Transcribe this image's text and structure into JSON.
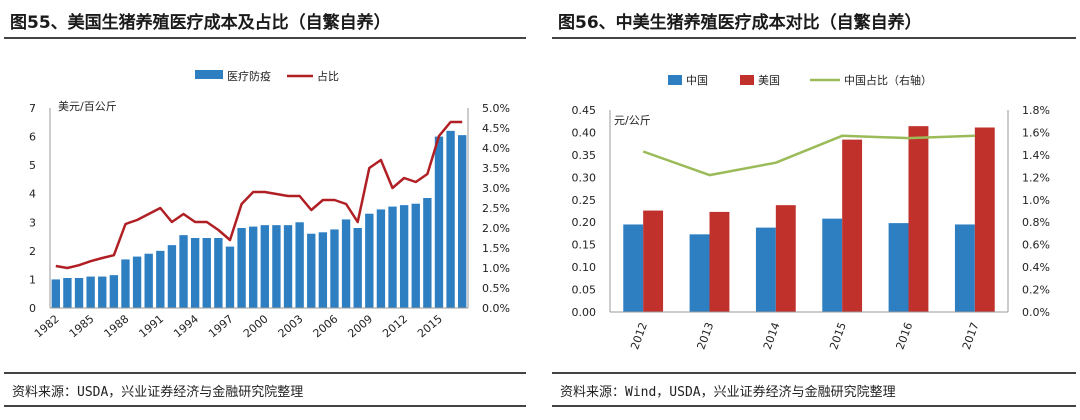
{
  "charts": [
    {
      "title": "图55、美国生猪养殖医疗成本及占比（自繁自养）",
      "source": "资料来源：USDA，兴业证券经济与金融研究院整理"
    },
    {
      "title": "图56、中美生猪养殖医疗成本对比（自繁自养）",
      "source": "资料来源：Wind，USDA，兴业证券经济与金融研究院整理"
    }
  ],
  "colors": {
    "blue": "#2e7fc1",
    "red": "#c0312c",
    "dark_red": "#b01f24",
    "green": "#9bbb59",
    "axis": "#999999",
    "grid": "#e3e3e3"
  },
  "chart_data": [
    {
      "type": "bar",
      "ylabel": "美元/百公斤",
      "x": [
        1982,
        1983,
        1984,
        1985,
        1986,
        1987,
        1988,
        1989,
        1990,
        1991,
        1992,
        1993,
        1994,
        1995,
        1996,
        1997,
        1998,
        1999,
        2000,
        2001,
        2002,
        2003,
        2004,
        2005,
        2006,
        2007,
        2008,
        2009,
        2010,
        2011,
        2012,
        2013,
        2014,
        2015,
        2016,
        2017
      ],
      "x_tick_labels": [
        "1982",
        "1985",
        "1988",
        "1991",
        "1994",
        "1997",
        "2000",
        "2003",
        "2006",
        "2009",
        "2012",
        "2015"
      ],
      "ylim": [
        0,
        7
      ],
      "y_ticks": [
        "0",
        "1",
        "2",
        "3",
        "4",
        "5",
        "6",
        "7"
      ],
      "y2lim": [
        0,
        5
      ],
      "y2_ticks": [
        "0.0%",
        "0.5%",
        "1.0%",
        "1.5%",
        "2.0%",
        "2.5%",
        "3.0%",
        "3.5%",
        "4.0%",
        "4.5%",
        "5.0%"
      ],
      "legend": [
        "医疗防疫",
        "占比"
      ],
      "legend_position": "top-center",
      "series": [
        {
          "name": "医疗防疫",
          "type": "bar",
          "axis": "left",
          "values": [
            1.0,
            1.05,
            1.05,
            1.1,
            1.1,
            1.15,
            1.7,
            1.8,
            1.9,
            2.0,
            2.2,
            2.55,
            2.45,
            2.45,
            2.45,
            2.15,
            2.8,
            2.85,
            2.9,
            2.9,
            2.9,
            3.0,
            2.6,
            2.65,
            2.75,
            3.1,
            2.8,
            3.3,
            3.45,
            3.55,
            3.6,
            3.65,
            3.85,
            6.0,
            6.2,
            6.05
          ]
        },
        {
          "name": "占比",
          "type": "line",
          "axis": "right",
          "values": [
            1.05,
            1.0,
            1.07,
            1.17,
            1.25,
            1.32,
            2.1,
            2.2,
            2.35,
            2.5,
            2.15,
            2.35,
            2.15,
            2.15,
            1.95,
            1.7,
            2.6,
            2.9,
            2.9,
            2.85,
            2.8,
            2.8,
            2.45,
            2.7,
            2.7,
            2.6,
            2.15,
            3.5,
            3.7,
            3.0,
            3.25,
            3.15,
            3.35,
            4.3,
            4.65,
            4.65
          ]
        }
      ]
    },
    {
      "type": "bar",
      "ylabel": "元/公斤",
      "categories": [
        "2012",
        "2013",
        "2014",
        "2015",
        "2016",
        "2017"
      ],
      "ylim": [
        0,
        0.45
      ],
      "y_ticks": [
        "0.00",
        "0.05",
        "0.10",
        "0.15",
        "0.20",
        "0.25",
        "0.30",
        "0.35",
        "0.40",
        "0.45"
      ],
      "y2lim": [
        0,
        1.8
      ],
      "y2_ticks": [
        "0.0%",
        "0.2%",
        "0.4%",
        "0.6%",
        "0.8%",
        "1.0%",
        "1.2%",
        "1.4%",
        "1.6%",
        "1.8%"
      ],
      "legend": [
        "中国",
        "美国",
        "中国占比（右轴）"
      ],
      "legend_position": "top-center",
      "series": [
        {
          "name": "中国",
          "type": "bar",
          "axis": "left",
          "values": [
            0.195,
            0.173,
            0.188,
            0.208,
            0.198,
            0.195
          ]
        },
        {
          "name": "美国",
          "type": "bar",
          "axis": "left",
          "values": [
            0.226,
            0.223,
            0.238,
            0.384,
            0.414,
            0.411
          ]
        },
        {
          "name": "中国占比（右轴）",
          "type": "line",
          "axis": "right",
          "values": [
            1.43,
            1.22,
            1.33,
            1.57,
            1.55,
            1.57
          ]
        }
      ]
    }
  ]
}
